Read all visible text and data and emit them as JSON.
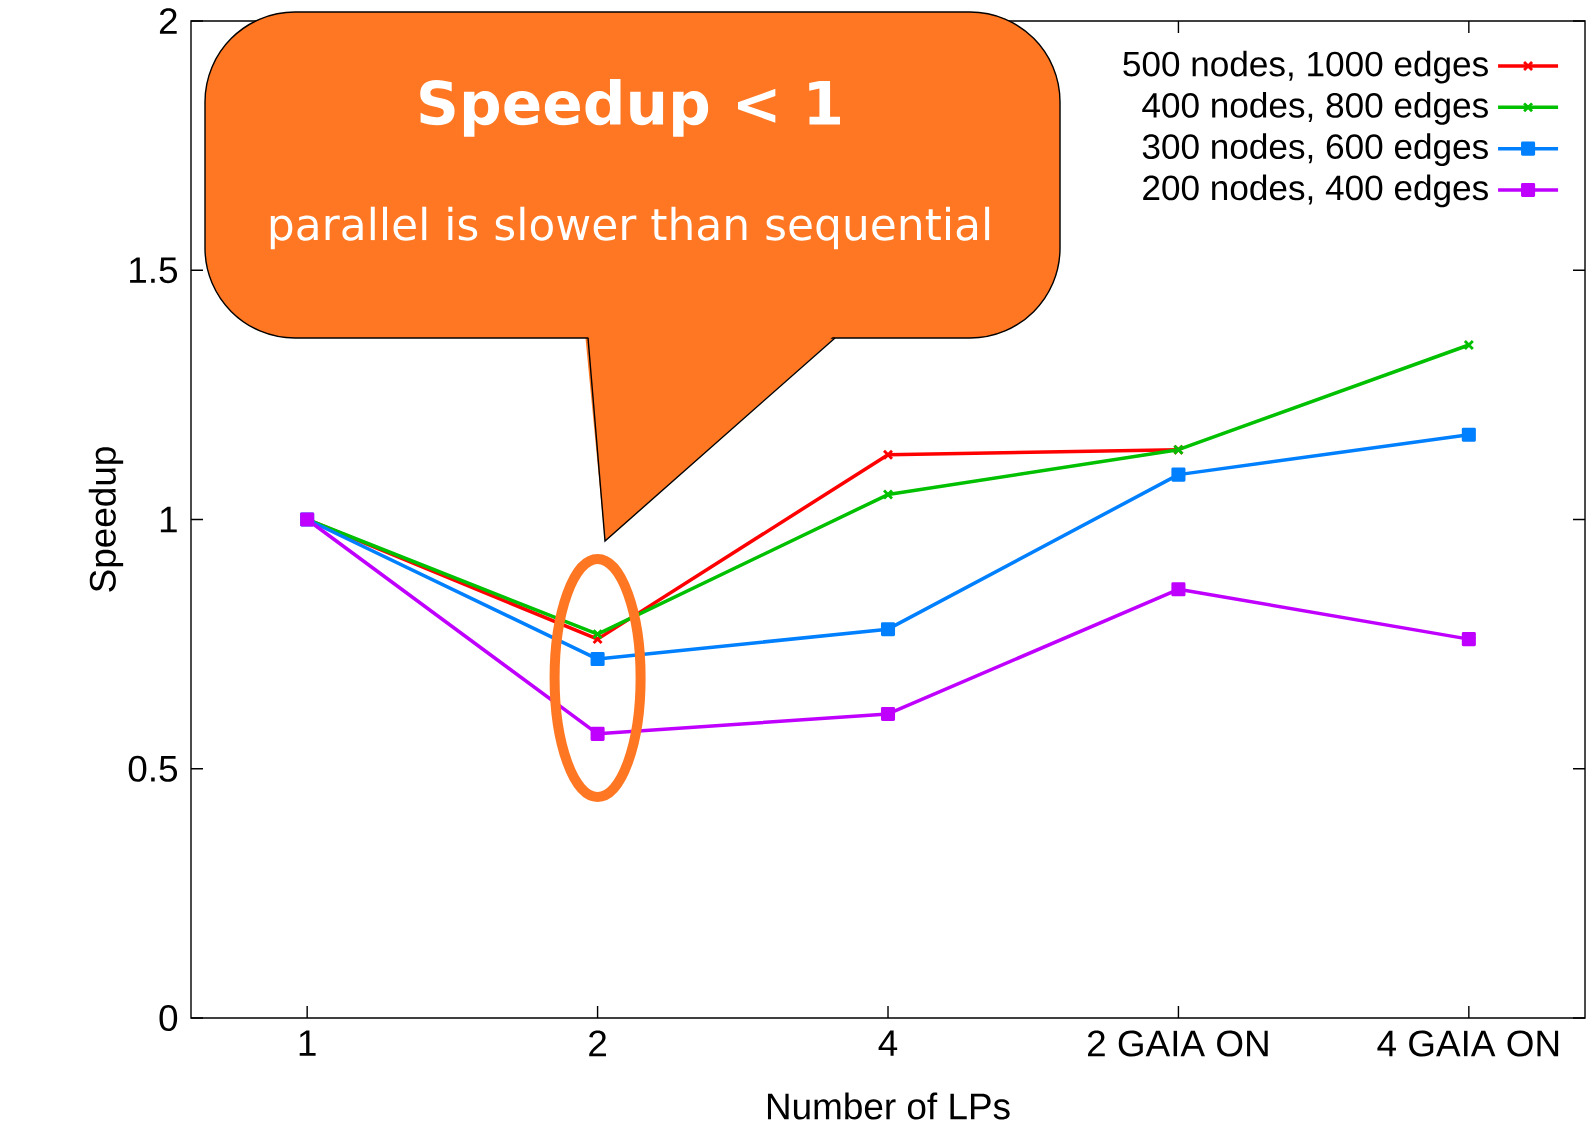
{
  "chart_data": {
    "type": "line",
    "xlabel": "Number of LPs",
    "ylabel": "Speedup",
    "categories": [
      "1",
      "2",
      "4",
      "2 GAIA ON",
      "4 GAIA ON"
    ],
    "ylim": [
      0,
      2
    ],
    "yticks": [
      0,
      0.5,
      1,
      1.5,
      2
    ],
    "legend": "top right",
    "grid": false,
    "series": [
      {
        "name": "500 nodes, 1000 edges",
        "color": "#ff0000",
        "marker": "cross",
        "values": [
          1.0,
          0.76,
          1.13,
          1.14,
          null
        ]
      },
      {
        "name": "400 nodes, 800 edges",
        "color": "#00c000",
        "marker": "cross",
        "values": [
          1.0,
          0.77,
          1.05,
          1.14,
          1.35
        ]
      },
      {
        "name": "300 nodes, 600 edges",
        "color": "#0080ff",
        "marker": "square",
        "values": [
          1.0,
          0.72,
          0.78,
          1.09,
          1.17
        ]
      },
      {
        "name": "200 nodes, 400 edges",
        "color": "#c000ff",
        "marker": "square",
        "values": [
          1.0,
          0.57,
          0.61,
          0.86,
          0.76
        ]
      }
    ],
    "annotations": [
      "Speedup < 1",
      "parallel is slower than sequential"
    ]
  }
}
